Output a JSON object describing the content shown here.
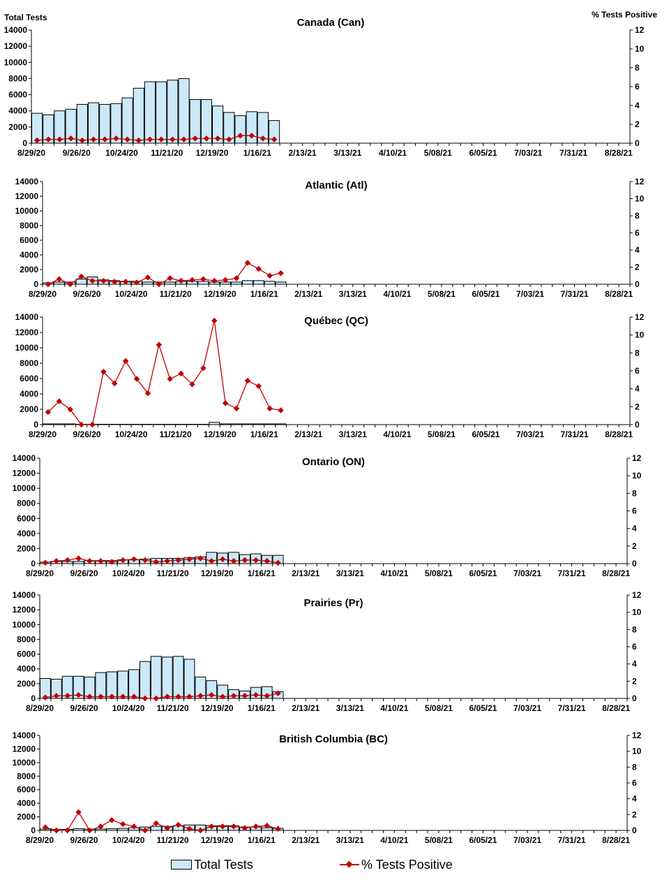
{
  "axis_titles": {
    "left": "Total Tests",
    "right": "% Tests Positive"
  },
  "legend": {
    "bars": "Total Tests",
    "line": "% Tests Positive"
  },
  "colors": {
    "bar_fill": "#cce9f9",
    "bar_stroke": "#000000",
    "line": "#c00000"
  },
  "chart_data": [
    {
      "type": "bar",
      "title": "Canada (Can)",
      "x_tick_labels": [
        "8/29/20",
        "9/26/20",
        "10/24/20",
        "11/21/20",
        "12/19/20",
        "1/16/21",
        "2/13/21",
        "3/13/21",
        "4/10/21",
        "5/08/21",
        "6/05/21",
        "7/03/21",
        "7/31/21",
        "8/28/21"
      ],
      "y_left_ticks": [
        "0",
        "2000",
        "4000",
        "6000",
        "8000",
        "10000",
        "12000",
        "14000"
      ],
      "y_right_ticks": [
        "0",
        "2",
        "4",
        "6",
        "8",
        "10",
        "12"
      ],
      "ylim": [
        0,
        14000
      ],
      "y2lim": [
        0,
        12
      ],
      "series": [
        {
          "name": "Total Tests",
          "type": "bar",
          "values": [
            3700,
            3500,
            4000,
            4200,
            4800,
            5000,
            4800,
            4900,
            5600,
            6800,
            7600,
            7600,
            7800,
            8000,
            5400,
            5400,
            4600,
            3800,
            3400,
            3900,
            3800,
            2800
          ]
        },
        {
          "name": "% Tests Positive",
          "type": "line",
          "values": [
            0.3,
            0.4,
            0.4,
            0.5,
            0.3,
            0.4,
            0.4,
            0.5,
            0.4,
            0.3,
            0.4,
            0.4,
            0.4,
            0.4,
            0.5,
            0.5,
            0.5,
            0.4,
            0.8,
            0.8,
            0.5,
            0.4
          ]
        }
      ]
    },
    {
      "type": "bar",
      "title": "Atlantic (Atl)",
      "x_tick_labels": [
        "8/29/20",
        "9/26/20",
        "10/24/20",
        "11/21/20",
        "12/19/20",
        "1/16/21",
        "2/13/21",
        "3/13/21",
        "4/10/21",
        "5/08/21",
        "6/05/21",
        "7/03/21",
        "7/31/21",
        "8/28/21"
      ],
      "y_left_ticks": [
        "0",
        "2000",
        "4000",
        "6000",
        "8000",
        "10000",
        "12000",
        "14000"
      ],
      "y_right_ticks": [
        "0",
        "2",
        "4",
        "6",
        "8",
        "10",
        "12"
      ],
      "ylim": [
        0,
        14000
      ],
      "y2lim": [
        0,
        12
      ],
      "series": [
        {
          "name": "Total Tests",
          "type": "bar",
          "values": [
            200,
            300,
            300,
            700,
            1000,
            600,
            500,
            400,
            400,
            300,
            300,
            300,
            400,
            400,
            400,
            300,
            300,
            300,
            500,
            500,
            400,
            300
          ]
        },
        {
          "name": "% Tests Positive",
          "type": "line",
          "values": [
            0.0,
            0.6,
            0.0,
            0.9,
            0.4,
            0.4,
            0.3,
            0.3,
            0.2,
            0.8,
            0.0,
            0.7,
            0.4,
            0.5,
            0.6,
            0.4,
            0.5,
            0.7,
            2.5,
            1.8,
            1.0,
            1.3
          ]
        }
      ]
    },
    {
      "type": "bar",
      "title": "Québec (QC)",
      "x_tick_labels": [
        "8/29/20",
        "9/26/20",
        "10/24/20",
        "11/21/20",
        "12/19/20",
        "1/16/21",
        "2/13/21",
        "3/13/21",
        "4/10/21",
        "5/08/21",
        "6/05/21",
        "7/03/21",
        "7/31/21",
        "8/28/21"
      ],
      "y_left_ticks": [
        "0",
        "2000",
        "4000",
        "6000",
        "8000",
        "10000",
        "12000",
        "14000"
      ],
      "y_right_ticks": [
        "0",
        "2",
        "4",
        "6",
        "8",
        "10",
        "12"
      ],
      "ylim": [
        0,
        14000
      ],
      "y2lim": [
        0,
        12
      ],
      "series": [
        {
          "name": "Total Tests",
          "type": "bar",
          "values": [
            100,
            100,
            100,
            50,
            50,
            50,
            50,
            50,
            50,
            50,
            50,
            50,
            50,
            50,
            50,
            300,
            100,
            100,
            100,
            100,
            100,
            100
          ]
        },
        {
          "name": "% Tests Positive",
          "type": "line",
          "values": [
            1.4,
            2.6,
            1.7,
            0.0,
            0.0,
            5.9,
            4.6,
            7.1,
            5.1,
            3.5,
            8.9,
            5.1,
            5.7,
            4.5,
            6.3,
            11.6,
            2.4,
            1.8,
            4.9,
            4.3,
            1.8,
            1.6
          ]
        }
      ]
    },
    {
      "type": "bar",
      "title": "Ontario (ON)",
      "x_tick_labels": [
        "8/29/20",
        "9/26/20",
        "10/24/20",
        "11/21/20",
        "12/19/20",
        "1/16/21",
        "2/13/21",
        "3/13/21",
        "4/10/21",
        "5/08/21",
        "6/05/21",
        "7/03/21",
        "7/31/21",
        "8/28/21"
      ],
      "y_left_ticks": [
        "0",
        "2000",
        "4000",
        "6000",
        "8000",
        "10000",
        "12000",
        "14000"
      ],
      "y_right_ticks": [
        "0",
        "2",
        "4",
        "6",
        "8",
        "10",
        "12"
      ],
      "ylim": [
        0,
        14000
      ],
      "y2lim": [
        0,
        12
      ],
      "series": [
        {
          "name": "Total Tests",
          "type": "bar",
          "values": [
            200,
            300,
            300,
            300,
            400,
            400,
            400,
            500,
            500,
            600,
            700,
            700,
            700,
            800,
            900,
            1500,
            1400,
            1500,
            1200,
            1300,
            1100,
            1100
          ]
        },
        {
          "name": "% Tests Positive",
          "type": "line",
          "values": [
            0.1,
            0.3,
            0.4,
            0.6,
            0.3,
            0.3,
            0.2,
            0.4,
            0.5,
            0.4,
            0.2,
            0.3,
            0.4,
            0.5,
            0.6,
            0.3,
            0.5,
            0.3,
            0.4,
            0.4,
            0.3,
            0.1
          ]
        }
      ]
    },
    {
      "type": "bar",
      "title": "Prairies (Pr)",
      "x_tick_labels": [
        "8/29/20",
        "9/26/20",
        "10/24/20",
        "11/21/20",
        "12/19/20",
        "1/16/21",
        "2/13/21",
        "3/13/21",
        "4/10/21",
        "5/08/21",
        "6/05/21",
        "7/03/21",
        "7/31/21",
        "8/28/21"
      ],
      "y_left_ticks": [
        "0",
        "2000",
        "4000",
        "6000",
        "8000",
        "10000",
        "12000",
        "14000"
      ],
      "y_right_ticks": [
        "0",
        "2",
        "4",
        "6",
        "8",
        "10",
        "12"
      ],
      "ylim": [
        0,
        14000
      ],
      "y2lim": [
        0,
        12
      ],
      "series": [
        {
          "name": "Total Tests",
          "type": "bar",
          "values": [
            2700,
            2600,
            3000,
            3000,
            2900,
            3500,
            3600,
            3700,
            3900,
            5000,
            5700,
            5600,
            5700,
            5300,
            2900,
            2400,
            1800,
            1200,
            1000,
            1500,
            1600,
            900
          ]
        },
        {
          "name": "% Tests Positive",
          "type": "line",
          "values": [
            0.1,
            0.3,
            0.3,
            0.4,
            0.2,
            0.2,
            0.2,
            0.2,
            0.2,
            0.0,
            0.0,
            0.2,
            0.2,
            0.2,
            0.3,
            0.4,
            0.2,
            0.3,
            0.3,
            0.4,
            0.3,
            0.6
          ]
        }
      ]
    },
    {
      "type": "bar",
      "title": "British Columbia (BC)",
      "x_tick_labels": [
        "8/29/20",
        "9/26/20",
        "10/24/20",
        "11/21/20",
        "12/19/20",
        "1/16/21",
        "2/13/21",
        "3/13/21",
        "4/10/21",
        "5/08/21",
        "6/05/21",
        "7/03/21",
        "7/31/21",
        "8/28/21"
      ],
      "y_left_ticks": [
        "0",
        "2000",
        "4000",
        "6000",
        "8000",
        "10000",
        "12000",
        "14000"
      ],
      "y_right_ticks": [
        "0",
        "2",
        "4",
        "6",
        "8",
        "10",
        "12"
      ],
      "ylim": [
        0,
        14000
      ],
      "y2lim": [
        0,
        12
      ],
      "series": [
        {
          "name": "Total Tests",
          "type": "bar",
          "values": [
            200,
            150,
            150,
            250,
            200,
            200,
            250,
            300,
            400,
            500,
            600,
            600,
            700,
            800,
            800,
            700,
            700,
            700,
            500,
            500,
            400,
            300
          ]
        },
        {
          "name": "% Tests Positive",
          "type": "line",
          "values": [
            0.4,
            0.0,
            0.0,
            2.3,
            0.0,
            0.5,
            1.3,
            0.8,
            0.5,
            0.0,
            0.9,
            0.3,
            0.7,
            0.2,
            0.0,
            0.5,
            0.5,
            0.5,
            0.3,
            0.5,
            0.6,
            0.2
          ]
        }
      ]
    }
  ]
}
